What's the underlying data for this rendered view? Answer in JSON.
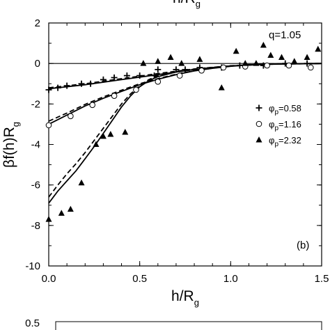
{
  "chart_data": [
    {
      "type": "scatter",
      "title": "",
      "top_cut_label": {
        "base": "h/R",
        "sub": "g"
      },
      "xlabel": {
        "base": "h/R",
        "sub": "g"
      },
      "ylabel": {
        "prefix": "βf(h)R",
        "sub": "g"
      },
      "xlim": [
        0.0,
        1.5
      ],
      "ylim": [
        -10,
        2
      ],
      "x_ticks": [
        "0.0",
        "0.5",
        "1.0",
        "1.5"
      ],
      "y_ticks": [
        "2",
        "0",
        "-2",
        "-4",
        "-6",
        "-8",
        "-10"
      ],
      "annotation_q": "q=1.05",
      "panel_label": "(b)",
      "grid": false,
      "legend_position": "right",
      "series": [
        {
          "name": "φp=0.58",
          "legend": {
            "sym": "φ",
            "sub": "p",
            "val": "=0.58"
          },
          "marker": "plus",
          "x": [
            0.0,
            0.05,
            0.1,
            0.18,
            0.23,
            0.3,
            0.36,
            0.43,
            0.5,
            0.58,
            0.6,
            0.7,
            0.75,
            0.83,
            0.95,
            1.05,
            1.18,
            1.3,
            1.42
          ],
          "y": [
            -1.3,
            -1.2,
            -1.1,
            -1.0,
            -1.0,
            -0.8,
            -0.7,
            -0.6,
            -0.6,
            -0.6,
            -0.3,
            -0.3,
            -0.3,
            -0.2,
            -0.2,
            -0.1,
            -0.1,
            0.0,
            0.0
          ]
        },
        {
          "name": "φp=1.16",
          "legend": {
            "sym": "φ",
            "sub": "p",
            "val": "=1.16"
          },
          "marker": "circle-open",
          "x": [
            0.0,
            0.12,
            0.24,
            0.36,
            0.48,
            0.6,
            0.72,
            0.84,
            0.96,
            1.08,
            1.2,
            1.32,
            1.44
          ],
          "y": [
            -3.05,
            -2.6,
            -2.05,
            -1.6,
            -1.3,
            -0.9,
            -0.6,
            -0.35,
            -0.2,
            -0.15,
            -0.1,
            -0.1,
            -0.2
          ]
        },
        {
          "name": "φp=2.32",
          "legend": {
            "sym": "φ",
            "sub": "p",
            "val": "=2.32"
          },
          "marker": "triangle-filled",
          "x": [
            0.0,
            0.07,
            0.12,
            0.18,
            0.26,
            0.3,
            0.34,
            0.42,
            0.52,
            0.6,
            0.67,
            0.73,
            0.83,
            0.95,
            1.03,
            1.08,
            1.14,
            1.18,
            1.22,
            1.28,
            1.35,
            1.42,
            1.48
          ],
          "y": [
            -7.7,
            -7.4,
            -7.2,
            -5.9,
            -4.0,
            -3.6,
            -3.5,
            -3.4,
            0.0,
            0.1,
            0.3,
            0.0,
            0.2,
            -1.2,
            0.6,
            0.0,
            0.0,
            0.9,
            0.4,
            0.3,
            0.1,
            0.3,
            0.7
          ]
        }
      ],
      "curves": [
        {
          "style": "solid",
          "x": [
            0.0,
            0.2,
            0.4,
            0.6,
            0.8,
            1.0,
            1.2,
            1.5
          ],
          "y": [
            -1.25,
            -1.05,
            -0.8,
            -0.55,
            -0.3,
            -0.13,
            -0.03,
            0.0
          ]
        },
        {
          "style": "dashed",
          "x": [
            0.0,
            0.2,
            0.4,
            0.6,
            0.8,
            1.0,
            1.2,
            1.5
          ],
          "y": [
            -1.2,
            -1.0,
            -0.75,
            -0.5,
            -0.27,
            -0.12,
            -0.03,
            0.0
          ]
        },
        {
          "style": "solid",
          "x": [
            0.0,
            0.1,
            0.2,
            0.3,
            0.4,
            0.5,
            0.6,
            0.7,
            0.8,
            0.9,
            1.0,
            1.1,
            1.2,
            1.3,
            1.5
          ],
          "y": [
            -3.0,
            -2.55,
            -2.1,
            -1.72,
            -1.38,
            -1.05,
            -0.78,
            -0.55,
            -0.37,
            -0.24,
            -0.14,
            -0.07,
            -0.03,
            -0.01,
            0.0
          ]
        },
        {
          "style": "dashed",
          "x": [
            0.0,
            0.1,
            0.2,
            0.3,
            0.4,
            0.5,
            0.6,
            0.7,
            0.8,
            0.9,
            1.0,
            1.1,
            1.2,
            1.3,
            1.5
          ],
          "y": [
            -2.85,
            -2.45,
            -2.02,
            -1.65,
            -1.32,
            -1.0,
            -0.75,
            -0.53,
            -0.36,
            -0.23,
            -0.13,
            -0.06,
            -0.02,
            -0.01,
            0.0
          ]
        },
        {
          "style": "solid",
          "x": [
            0.0,
            0.05,
            0.1,
            0.15,
            0.2,
            0.25,
            0.3,
            0.35,
            0.4,
            0.45,
            0.5,
            0.55,
            0.6,
            0.7,
            0.8,
            0.9,
            1.0,
            1.2,
            1.5
          ],
          "y": [
            -6.9,
            -6.3,
            -5.8,
            -5.3,
            -4.7,
            -4.1,
            -3.45,
            -2.8,
            -2.15,
            -1.6,
            -1.15,
            -0.85,
            -0.65,
            -0.42,
            -0.3,
            -0.2,
            -0.12,
            -0.04,
            0.0
          ]
        },
        {
          "style": "dashed",
          "x": [
            0.0,
            0.05,
            0.1,
            0.15,
            0.2,
            0.25,
            0.3,
            0.35,
            0.4,
            0.45,
            0.5,
            0.55,
            0.6,
            0.7,
            0.8,
            0.9,
            1.0,
            1.2,
            1.5
          ],
          "y": [
            -6.6,
            -6.0,
            -5.45,
            -4.95,
            -4.4,
            -3.8,
            -3.2,
            -2.6,
            -2.0,
            -1.5,
            -1.1,
            -0.8,
            -0.6,
            -0.4,
            -0.28,
            -0.19,
            -0.11,
            -0.04,
            0.0
          ]
        }
      ]
    },
    {
      "type": "line",
      "title": "",
      "y_ticks": [
        "0.5"
      ]
    }
  ]
}
